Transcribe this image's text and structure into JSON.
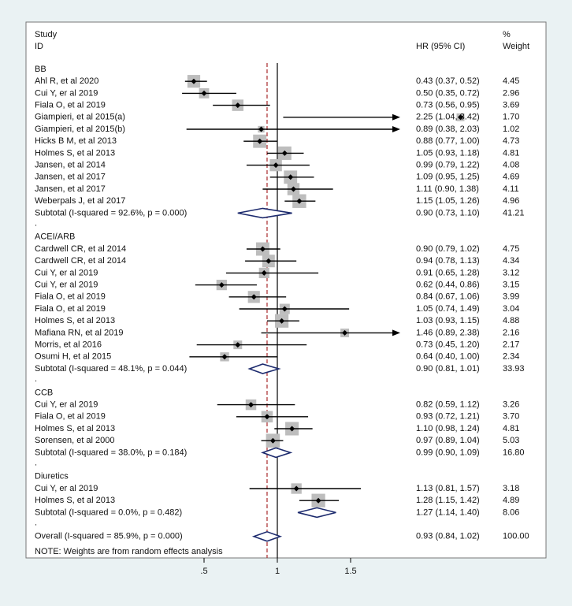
{
  "chart_data": {
    "type": "forest",
    "header": {
      "study": "Study",
      "id": "ID",
      "hr": "HR (95% CI)",
      "pct": "%",
      "weight": "Weight"
    },
    "x_ticks": [
      {
        "label": ".5",
        "value": 0.5
      },
      {
        "label": "1",
        "value": 1
      },
      {
        "label": "1.5",
        "value": 1.5
      }
    ],
    "reference_value": 1,
    "overall_line_value": 0.93,
    "groups": [
      {
        "name": "BB",
        "studies": [
          {
            "label": "Ahl R, et al 2020",
            "hr": 0.43,
            "lo": 0.37,
            "hi": 0.52,
            "ci_text": "0.43 (0.37, 0.52)",
            "weight": 4.45,
            "weight_text": "4.45"
          },
          {
            "label": "Cui Y, er al 2019",
            "hr": 0.5,
            "lo": 0.35,
            "hi": 0.72,
            "ci_text": "0.50 (0.35, 0.72)",
            "weight": 2.96,
            "weight_text": "2.96"
          },
          {
            "label": "Fiala O, et al 2019",
            "hr": 0.73,
            "lo": 0.56,
            "hi": 0.95,
            "ci_text": "0.73 (0.56, 0.95)",
            "weight": 3.69,
            "weight_text": "3.69"
          },
          {
            "label": "Giampieri, et al 2015(a)",
            "hr": 2.25,
            "lo": 1.04,
            "hi": 3.42,
            "ci_text": "2.25 (1.04, 3.42)",
            "weight": 1.7,
            "weight_text": "1.70",
            "arrow": true
          },
          {
            "label": "Giampieri, et al 2015(b)",
            "hr": 0.89,
            "lo": 0.38,
            "hi": 2.03,
            "ci_text": "0.89 (0.38, 2.03)",
            "weight": 1.02,
            "weight_text": "1.02"
          },
          {
            "label": "Hicks B M, et al 2013",
            "hr": 0.88,
            "lo": 0.77,
            "hi": 1.0,
            "ci_text": "0.88 (0.77, 1.00)",
            "weight": 4.73,
            "weight_text": "4.73"
          },
          {
            "label": "Holmes S, et al 2013",
            "hr": 1.05,
            "lo": 0.93,
            "hi": 1.18,
            "ci_text": "1.05 (0.93, 1.18)",
            "weight": 4.81,
            "weight_text": "4.81"
          },
          {
            "label": "Jansen, et al 2014",
            "hr": 0.99,
            "lo": 0.79,
            "hi": 1.22,
            "ci_text": "0.99 (0.79, 1.22)",
            "weight": 4.08,
            "weight_text": "4.08"
          },
          {
            "label": "Jansen, et al 2017",
            "hr": 1.09,
            "lo": 0.95,
            "hi": 1.25,
            "ci_text": "1.09 (0.95, 1.25)",
            "weight": 4.69,
            "weight_text": "4.69"
          },
          {
            "label": "Jansen, et al 2017",
            "hr": 1.11,
            "lo": 0.9,
            "hi": 1.38,
            "ci_text": "1.11 (0.90, 1.38)",
            "weight": 4.11,
            "weight_text": "4.11"
          },
          {
            "label": "Weberpals J, et al 2017",
            "hr": 1.15,
            "lo": 1.05,
            "hi": 1.26,
            "ci_text": "1.15 (1.05, 1.26)",
            "weight": 4.96,
            "weight_text": "4.96"
          }
        ],
        "subtotal": {
          "label": "Subtotal  (I-squared = 92.6%, p = 0.000)",
          "hr": 0.9,
          "lo": 0.73,
          "hi": 1.1,
          "ci_text": "0.90 (0.73, 1.10)",
          "weight_text": "41.21"
        }
      },
      {
        "name": "ACEI/ARB",
        "studies": [
          {
            "label": "Cardwell CR, et al 2014",
            "hr": 0.9,
            "lo": 0.79,
            "hi": 1.02,
            "ci_text": "0.90 (0.79, 1.02)",
            "weight": 4.75,
            "weight_text": "4.75"
          },
          {
            "label": "Cardwell CR, et al 2014",
            "hr": 0.94,
            "lo": 0.78,
            "hi": 1.13,
            "ci_text": "0.94 (0.78, 1.13)",
            "weight": 4.34,
            "weight_text": "4.34"
          },
          {
            "label": "Cui Y, er al 2019",
            "hr": 0.91,
            "lo": 0.65,
            "hi": 1.28,
            "ci_text": "0.91 (0.65, 1.28)",
            "weight": 3.12,
            "weight_text": "3.12"
          },
          {
            "label": "Cui Y, er al 2019",
            "hr": 0.62,
            "lo": 0.44,
            "hi": 0.86,
            "ci_text": "0.62 (0.44, 0.86)",
            "weight": 3.15,
            "weight_text": "3.15"
          },
          {
            "label": "Fiala O, et al 2019",
            "hr": 0.84,
            "lo": 0.67,
            "hi": 1.06,
            "ci_text": "0.84 (0.67, 1.06)",
            "weight": 3.99,
            "weight_text": "3.99"
          },
          {
            "label": "Fiala O, et al 2019",
            "hr": 1.05,
            "lo": 0.74,
            "hi": 1.49,
            "ci_text": "1.05 (0.74, 1.49)",
            "weight": 3.04,
            "weight_text": "3.04"
          },
          {
            "label": "Holmes S, et al 2013",
            "hr": 1.03,
            "lo": 0.93,
            "hi": 1.15,
            "ci_text": "1.03 (0.93, 1.15)",
            "weight": 4.88,
            "weight_text": "4.88"
          },
          {
            "label": "Mafiana RN, et al 2019",
            "hr": 1.46,
            "lo": 0.89,
            "hi": 2.38,
            "ci_text": "1.46 (0.89, 2.38)",
            "weight": 2.16,
            "weight_text": "2.16"
          },
          {
            "label": "Morris, et al 2016",
            "hr": 0.73,
            "lo": 0.45,
            "hi": 1.2,
            "ci_text": "0.73 (0.45, 1.20)",
            "weight": 2.17,
            "weight_text": "2.17"
          },
          {
            "label": "Osumi H, et al 2015",
            "hr": 0.64,
            "lo": 0.4,
            "hi": 1.0,
            "ci_text": "0.64 (0.40, 1.00)",
            "weight": 2.34,
            "weight_text": "2.34"
          }
        ],
        "subtotal": {
          "label": "Subtotal  (I-squared = 48.1%, p = 0.044)",
          "hr": 0.9,
          "lo": 0.81,
          "hi": 1.01,
          "ci_text": "0.90 (0.81, 1.01)",
          "weight_text": "33.93"
        }
      },
      {
        "name": "CCB",
        "studies": [
          {
            "label": "Cui Y, er al 2019",
            "hr": 0.82,
            "lo": 0.59,
            "hi": 1.12,
            "ci_text": "0.82 (0.59, 1.12)",
            "weight": 3.26,
            "weight_text": "3.26"
          },
          {
            "label": "Fiala O, et al 2019",
            "hr": 0.93,
            "lo": 0.72,
            "hi": 1.21,
            "ci_text": "0.93 (0.72, 1.21)",
            "weight": 3.7,
            "weight_text": "3.70"
          },
          {
            "label": "Holmes S, et al 2013",
            "hr": 1.1,
            "lo": 0.98,
            "hi": 1.24,
            "ci_text": "1.10 (0.98, 1.24)",
            "weight": 4.81,
            "weight_text": "4.81"
          },
          {
            "label": "Sorensen, et al 2000",
            "hr": 0.97,
            "lo": 0.89,
            "hi": 1.04,
            "ci_text": "0.97 (0.89, 1.04)",
            "weight": 5.03,
            "weight_text": "5.03"
          }
        ],
        "subtotal": {
          "label": "Subtotal  (I-squared = 38.0%, p = 0.184)",
          "hr": 0.99,
          "lo": 0.9,
          "hi": 1.09,
          "ci_text": "0.99 (0.90, 1.09)",
          "weight_text": "16.80"
        }
      },
      {
        "name": "Diuretics",
        "studies": [
          {
            "label": "Cui Y, er al 2019",
            "hr": 1.13,
            "lo": 0.81,
            "hi": 1.57,
            "ci_text": "1.13 (0.81, 1.57)",
            "weight": 3.18,
            "weight_text": "3.18"
          },
          {
            "label": "Holmes S, et al 2013",
            "hr": 1.28,
            "lo": 1.15,
            "hi": 1.42,
            "ci_text": "1.28 (1.15, 1.42)",
            "weight": 4.89,
            "weight_text": "4.89"
          }
        ],
        "subtotal": {
          "label": "Subtotal  (I-squared = 0.0%, p = 0.482)",
          "hr": 1.27,
          "lo": 1.14,
          "hi": 1.4,
          "ci_text": "1.27 (1.14, 1.40)",
          "weight_text": "8.06"
        }
      }
    ],
    "overall": {
      "label": "Overall  (I-squared = 85.9%, p = 0.000)",
      "hr": 0.93,
      "lo": 0.84,
      "hi": 1.02,
      "ci_text": "0.93 (0.84, 1.02)",
      "weight_text": "100.00"
    },
    "note": "NOTE: Weights are from random effects analysis",
    "separator": "."
  }
}
